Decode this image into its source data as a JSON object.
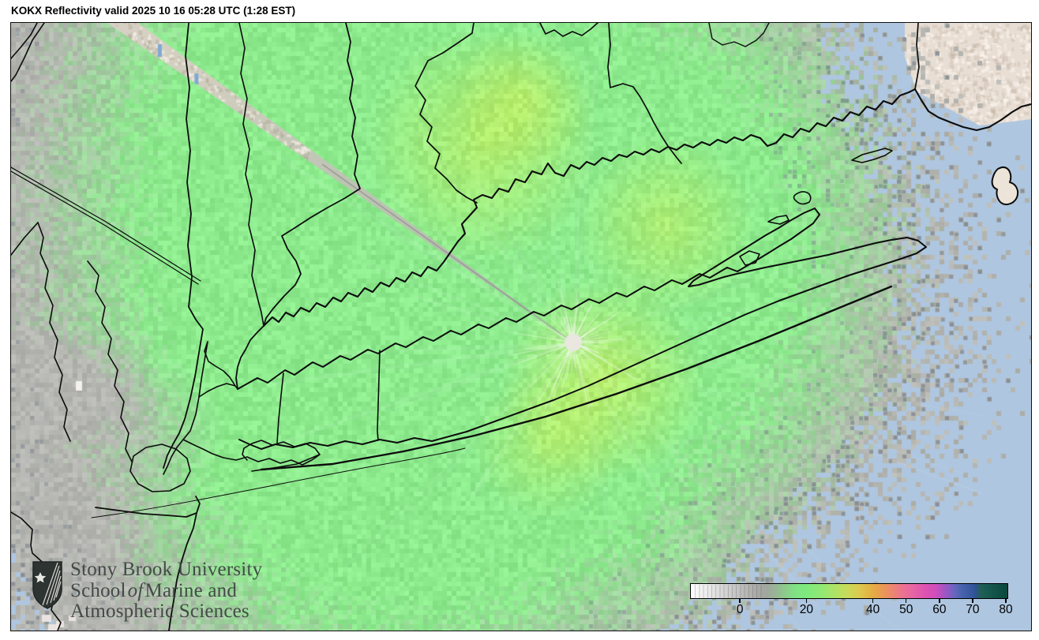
{
  "title": "KOKX Reflectivity valid 2025 10 16 05:28 UTC (1:28 EST)",
  "logo": {
    "line1": "Stony Brook University",
    "line2_pre": "School",
    "line2_italic": "of",
    "line2_post": "Marine and",
    "line3": "Atmospheric Sciences"
  },
  "colorbar": {
    "ticks": [
      "0",
      "20",
      "40",
      "50",
      "60",
      "70",
      "80"
    ],
    "tick_values": [
      0,
      20,
      40,
      50,
      60,
      70,
      80
    ],
    "min": -15,
    "max": 80,
    "stops": [
      [
        -15,
        "#ffffff"
      ],
      [
        -8,
        "#e2e2e2"
      ],
      [
        0,
        "#bfbfbf"
      ],
      [
        5,
        "#a9a9a7"
      ],
      [
        8,
        "#a0a79d"
      ],
      [
        11,
        "#97b894"
      ],
      [
        14,
        "#8ad089"
      ],
      [
        17,
        "#80e383"
      ],
      [
        20,
        "#7eea7d"
      ],
      [
        24,
        "#8ee974"
      ],
      [
        28,
        "#aae467"
      ],
      [
        32,
        "#c6dc5b"
      ],
      [
        36,
        "#dcc94e"
      ],
      [
        40,
        "#e5ad43"
      ],
      [
        43,
        "#e99a55"
      ],
      [
        46,
        "#ec8670"
      ],
      [
        49,
        "#ec7390"
      ],
      [
        52,
        "#e765a5"
      ],
      [
        56,
        "#dd52b1"
      ],
      [
        59,
        "#d14dbb"
      ],
      [
        61,
        "#b052c2"
      ],
      [
        63,
        "#8a5cc4"
      ],
      [
        65,
        "#6266bd"
      ],
      [
        67,
        "#4763ad"
      ],
      [
        69,
        "#3b5ba3"
      ],
      [
        71,
        "#2f5295"
      ],
      [
        72.5,
        "#226058"
      ],
      [
        75,
        "#185a50"
      ],
      [
        78,
        "#104f44"
      ],
      [
        80,
        "#0b4a3d"
      ]
    ]
  },
  "colors": {
    "ocean": "#aec6e0",
    "terrain": "#e8ded4",
    "terrain_light": "#f4ede5",
    "radar_green": "#8deb8e",
    "radar_gray": "#b4b5b1",
    "radar_yellow": "#d8cf6a",
    "speckle_dark": "#6c7684",
    "boundary": "#0c0c0c",
    "radar_center_dot": "#eae6e0",
    "logo_color": "#3a403e",
    "title_color": "#000000"
  }
}
